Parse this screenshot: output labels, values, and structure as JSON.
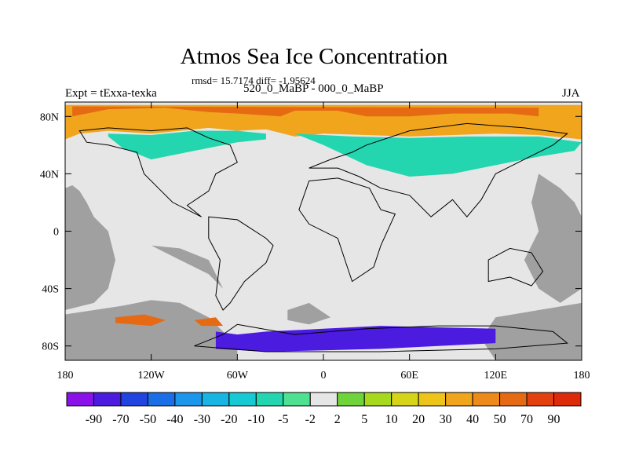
{
  "title": "Atmos Sea Ice Concentration",
  "stats": "rmsd= 15.7174 diff= -1.95624",
  "left_label": "Expt = tExxa-texka",
  "center_label": "520_0_MaBP - 000_0_MaBP",
  "right_label": "JJA",
  "chart_data": {
    "type": "heatmap",
    "title": "Atmos Sea Ice Concentration",
    "xlabel": "",
    "ylabel": "",
    "x_ticks": [
      "180",
      "120W",
      "60W",
      "0",
      "60E",
      "120E",
      "180"
    ],
    "y_ticks": [
      "80N",
      "40N",
      "0",
      "40S",
      "80S"
    ],
    "x_range": [
      -180,
      180
    ],
    "y_range": [
      -90,
      90
    ],
    "colorbar_labels": [
      "-90",
      "-70",
      "-50",
      "-40",
      "-30",
      "-20",
      "-10",
      "-5",
      "-2",
      "2",
      "5",
      "10",
      "20",
      "30",
      "40",
      "50",
      "70",
      "90"
    ],
    "colorbar_colors": [
      "#8a12e8",
      "#4b1be0",
      "#2144e0",
      "#1a6ee6",
      "#1c96ea",
      "#18b4e2",
      "#17c9d2",
      "#23d6b0",
      "#4fe092",
      "#e6e6e6",
      "#6ed43a",
      "#a6d81e",
      "#d6d418",
      "#ecc41a",
      "#f0a51c",
      "#ee8a1a",
      "#e66a14",
      "#e2400e",
      "#dc2a0a"
    ],
    "missing_color": "#a0a0a0",
    "regions": [
      {
        "desc": "Arctic ice gain band",
        "points": [
          [
            -180,
            64
          ],
          [
            -170,
            68
          ],
          [
            -150,
            70
          ],
          [
            -120,
            68
          ],
          [
            -100,
            70
          ],
          [
            -80,
            72
          ],
          [
            -60,
            70
          ],
          [
            -40,
            71
          ],
          [
            -20,
            66
          ],
          [
            0,
            68
          ],
          [
            30,
            67
          ],
          [
            60,
            66
          ],
          [
            90,
            67
          ],
          [
            120,
            68
          ],
          [
            150,
            67
          ],
          [
            180,
            64
          ],
          [
            180,
            88
          ],
          [
            -180,
            88
          ]
        ],
        "color": "#f0a51c"
      },
      {
        "desc": "Arctic high gain core",
        "points": [
          [
            -175,
            80
          ],
          [
            -150,
            85
          ],
          [
            -110,
            86
          ],
          [
            -80,
            83
          ],
          [
            -60,
            82
          ],
          [
            -30,
            80
          ],
          [
            -20,
            84
          ],
          [
            10,
            84
          ],
          [
            30,
            80
          ],
          [
            60,
            80
          ],
          [
            90,
            82
          ],
          [
            130,
            82
          ],
          [
            150,
            80
          ],
          [
            150,
            86
          ],
          [
            -175,
            87
          ]
        ],
        "color": "#e66a14"
      },
      {
        "desc": "North Pacific/Atlantic ice loss",
        "points": [
          [
            -150,
            66
          ],
          [
            -140,
            58
          ],
          [
            -120,
            50
          ],
          [
            -100,
            54
          ],
          [
            -80,
            58
          ],
          [
            -60,
            62
          ],
          [
            -40,
            64
          ],
          [
            -40,
            68
          ],
          [
            -60,
            70
          ],
          [
            -90,
            70
          ],
          [
            -120,
            67
          ],
          [
            -150,
            68
          ]
        ],
        "color": "#23d6b0"
      },
      {
        "desc": "Eurasian ice loss",
        "points": [
          [
            -20,
            68
          ],
          [
            0,
            60
          ],
          [
            30,
            46
          ],
          [
            60,
            38
          ],
          [
            90,
            40
          ],
          [
            120,
            46
          ],
          [
            150,
            52
          ],
          [
            175,
            56
          ],
          [
            180,
            62
          ],
          [
            150,
            66
          ],
          [
            100,
            66
          ],
          [
            60,
            65
          ],
          [
            20,
            66
          ]
        ],
        "color": "#23d6b0"
      },
      {
        "desc": "Antarctic ice loss",
        "points": [
          [
            -75,
            -70
          ],
          [
            -60,
            -72
          ],
          [
            -40,
            -70
          ],
          [
            0,
            -68
          ],
          [
            40,
            -66
          ],
          [
            80,
            -67
          ],
          [
            120,
            -68
          ],
          [
            120,
            -78
          ],
          [
            80,
            -80
          ],
          [
            40,
            -82
          ],
          [
            0,
            -83
          ],
          [
            -40,
            -84
          ],
          [
            -75,
            -82
          ]
        ],
        "color": "#4b1be0"
      },
      {
        "desc": "Antarctic edge gain",
        "points": [
          [
            -145,
            -60
          ],
          [
            -125,
            -58
          ],
          [
            -110,
            -62
          ],
          [
            -120,
            -66
          ],
          [
            -145,
            -64
          ]
        ],
        "color": "#e66a14"
      },
      {
        "desc": "Antarctic edge gain 2",
        "points": [
          [
            -90,
            -62
          ],
          [
            -75,
            -60
          ],
          [
            -70,
            -66
          ],
          [
            -85,
            -66
          ]
        ],
        "color": "#e66a14"
      }
    ],
    "colorbar_ticks_positions": "between",
    "grid": false
  }
}
